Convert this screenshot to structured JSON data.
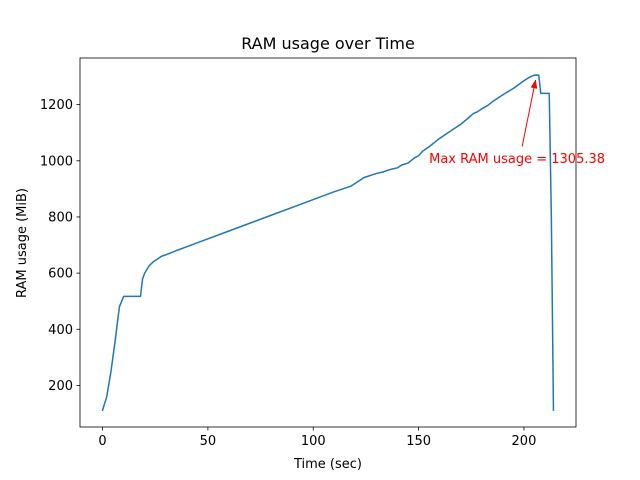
{
  "chart_data": {
    "type": "line",
    "title": "RAM usage over Time",
    "xlabel": "Time (sec)",
    "ylabel": "RAM usage (MiB)",
    "xlim": [
      -10.7,
      224.7
    ],
    "ylim": [
      52,
      1366
    ],
    "xticks": [
      0,
      50,
      100,
      150,
      200
    ],
    "yticks": [
      200,
      400,
      600,
      800,
      1000,
      1200
    ],
    "xtick_labels": [
      "0",
      "50",
      "100",
      "150",
      "200"
    ],
    "ytick_labels": [
      "200",
      "400",
      "600",
      "800",
      "1000",
      "1200"
    ],
    "grid": false,
    "series": [
      {
        "color": "#1f77b4",
        "x": [
          0,
          2,
          4,
          6,
          8,
          10,
          12,
          14,
          16,
          18,
          19,
          20,
          22,
          24,
          26,
          28,
          30,
          35,
          40,
          50,
          60,
          70,
          80,
          90,
          100,
          110,
          118,
          120,
          122,
          124,
          126,
          128,
          130,
          133,
          136,
          140,
          142,
          145,
          148,
          150,
          152,
          155,
          158,
          160,
          163,
          166,
          170,
          174,
          176,
          178,
          180,
          183,
          185,
          190,
          195,
          200,
          202,
          204,
          205,
          206,
          207,
          208,
          210,
          212,
          213,
          214
        ],
        "y": [
          112,
          160,
          250,
          360,
          480,
          517,
          517,
          517,
          517,
          517,
          580,
          600,
          625,
          640,
          650,
          660,
          665,
          680,
          694,
          722,
          750,
          778,
          806,
          834,
          862,
          890,
          910,
          920,
          930,
          940,
          945,
          950,
          955,
          960,
          968,
          975,
          985,
          992,
          1010,
          1018,
          1035,
          1050,
          1068,
          1080,
          1095,
          1110,
          1130,
          1155,
          1168,
          1175,
          1185,
          1198,
          1210,
          1235,
          1258,
          1285,
          1295,
          1302,
          1305,
          1305.38,
          1305,
          1240,
          1240,
          1240,
          800,
          112
        ]
      }
    ],
    "annotation": {
      "text": "Max RAM usage = 1305.38",
      "color": "#ff0000",
      "point": [
        206,
        1305.38
      ],
      "text_anchor": [
        155,
        1008
      ]
    }
  }
}
